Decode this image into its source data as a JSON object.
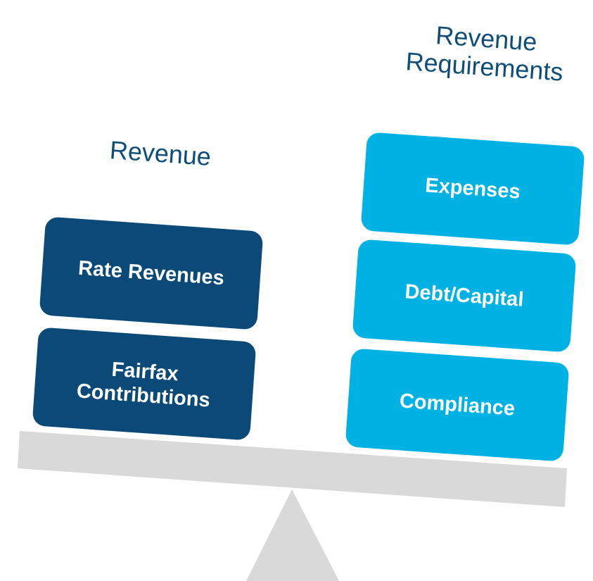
{
  "left": {
    "label": "Revenue",
    "blocks": [
      "Rate Revenues",
      "Fairfax Contributions"
    ]
  },
  "right": {
    "label": "Revenue Requirements",
    "blocks": [
      "Expenses",
      "Debt/Capital",
      "Compliance"
    ]
  }
}
